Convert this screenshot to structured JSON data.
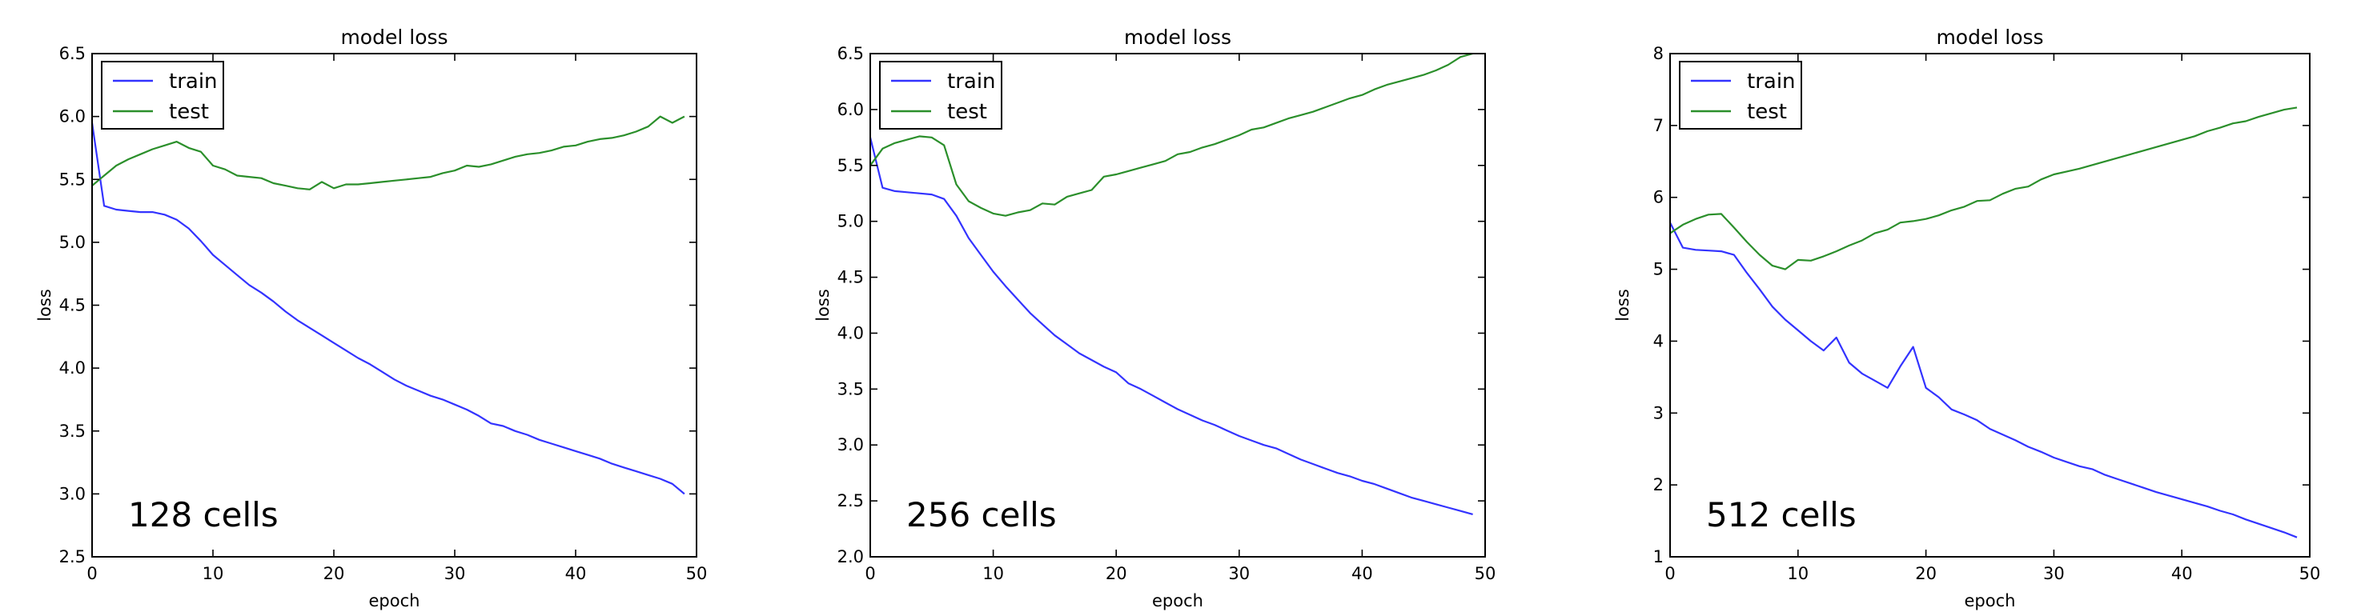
{
  "chart_data": [
    {
      "type": "line",
      "title": "model loss",
      "xlabel": "epoch",
      "ylabel": "loss",
      "xlim": [
        0,
        50
      ],
      "ylim": [
        2.5,
        6.5
      ],
      "xticks": [
        0,
        10,
        20,
        30,
        40,
        50
      ],
      "yticks": [
        2.5,
        3.0,
        3.5,
        4.0,
        4.5,
        5.0,
        5.5,
        6.0,
        6.5
      ],
      "ytick_labels": [
        "2.5",
        "3.0",
        "3.5",
        "4.0",
        "4.5",
        "5.0",
        "5.5",
        "6.0",
        "6.5"
      ],
      "annotation": "128 cells",
      "legend_location": "top-left",
      "grid": false,
      "x": [
        0,
        1,
        2,
        3,
        4,
        5,
        6,
        7,
        8,
        9,
        10,
        11,
        12,
        13,
        14,
        15,
        16,
        17,
        18,
        19,
        20,
        21,
        22,
        23,
        24,
        25,
        26,
        27,
        28,
        29,
        30,
        31,
        32,
        33,
        34,
        35,
        36,
        37,
        38,
        39,
        40,
        41,
        42,
        43,
        44,
        45,
        46,
        47,
        48,
        49
      ],
      "series": [
        {
          "name": "train",
          "color": "#3333ff",
          "values": [
            5.95,
            5.29,
            5.26,
            5.25,
            5.24,
            5.24,
            5.22,
            5.18,
            5.11,
            5.01,
            4.9,
            4.82,
            4.74,
            4.66,
            4.6,
            4.53,
            4.45,
            4.38,
            4.32,
            4.26,
            4.2,
            4.14,
            4.08,
            4.03,
            3.97,
            3.91,
            3.86,
            3.82,
            3.78,
            3.75,
            3.71,
            3.67,
            3.62,
            3.56,
            3.54,
            3.5,
            3.47,
            3.43,
            3.4,
            3.37,
            3.34,
            3.31,
            3.28,
            3.24,
            3.21,
            3.18,
            3.15,
            3.12,
            3.08,
            3.0
          ]
        },
        {
          "name": "test",
          "color": "#2b8f2b",
          "values": [
            5.45,
            5.53,
            5.61,
            5.66,
            5.7,
            5.74,
            5.77,
            5.8,
            5.75,
            5.72,
            5.61,
            5.58,
            5.53,
            5.52,
            5.51,
            5.47,
            5.45,
            5.43,
            5.42,
            5.48,
            5.43,
            5.46,
            5.46,
            5.47,
            5.48,
            5.49,
            5.5,
            5.51,
            5.52,
            5.55,
            5.57,
            5.61,
            5.6,
            5.62,
            5.65,
            5.68,
            5.7,
            5.71,
            5.73,
            5.76,
            5.77,
            5.8,
            5.82,
            5.83,
            5.85,
            5.88,
            5.92,
            6.0,
            5.95,
            6.0
          ]
        }
      ]
    },
    {
      "type": "line",
      "title": "model loss",
      "xlabel": "epoch",
      "ylabel": "loss",
      "xlim": [
        0,
        50
      ],
      "ylim": [
        2.0,
        6.5
      ],
      "xticks": [
        0,
        10,
        20,
        30,
        40,
        50
      ],
      "yticks": [
        2.0,
        2.5,
        3.0,
        3.5,
        4.0,
        4.5,
        5.0,
        5.5,
        6.0,
        6.5
      ],
      "ytick_labels": [
        "2.0",
        "2.5",
        "3.0",
        "3.5",
        "4.0",
        "4.5",
        "5.0",
        "5.5",
        "6.0",
        "6.5"
      ],
      "annotation": "256 cells",
      "legend_location": "top-left",
      "grid": false,
      "x": [
        0,
        1,
        2,
        3,
        4,
        5,
        6,
        7,
        8,
        9,
        10,
        11,
        12,
        13,
        14,
        15,
        16,
        17,
        18,
        19,
        20,
        21,
        22,
        23,
        24,
        25,
        26,
        27,
        28,
        29,
        30,
        31,
        32,
        33,
        34,
        35,
        36,
        37,
        38,
        39,
        40,
        41,
        42,
        43,
        44,
        45,
        46,
        47,
        48,
        49
      ],
      "series": [
        {
          "name": "train",
          "color": "#3333ff",
          "values": [
            5.75,
            5.3,
            5.27,
            5.26,
            5.25,
            5.24,
            5.2,
            5.05,
            4.85,
            4.7,
            4.55,
            4.42,
            4.3,
            4.18,
            4.08,
            3.98,
            3.9,
            3.82,
            3.76,
            3.7,
            3.65,
            3.55,
            3.5,
            3.44,
            3.38,
            3.32,
            3.27,
            3.22,
            3.18,
            3.13,
            3.08,
            3.04,
            3.0,
            2.97,
            2.92,
            2.87,
            2.83,
            2.79,
            2.75,
            2.72,
            2.68,
            2.65,
            2.61,
            2.57,
            2.53,
            2.5,
            2.47,
            2.44,
            2.41,
            2.38
          ]
        },
        {
          "name": "test",
          "color": "#2b8f2b",
          "values": [
            5.5,
            5.65,
            5.7,
            5.73,
            5.76,
            5.75,
            5.68,
            5.33,
            5.18,
            5.12,
            5.07,
            5.05,
            5.08,
            5.1,
            5.16,
            5.15,
            5.22,
            5.25,
            5.28,
            5.4,
            5.42,
            5.45,
            5.48,
            5.51,
            5.54,
            5.6,
            5.62,
            5.66,
            5.69,
            5.73,
            5.77,
            5.82,
            5.84,
            5.88,
            5.92,
            5.95,
            5.98,
            6.02,
            6.06,
            6.1,
            6.13,
            6.18,
            6.22,
            6.25,
            6.28,
            6.31,
            6.35,
            6.4,
            6.47,
            6.5
          ]
        }
      ]
    },
    {
      "type": "line",
      "title": "model loss",
      "xlabel": "epoch",
      "ylabel": "loss",
      "xlim": [
        0,
        50
      ],
      "ylim": [
        1,
        8
      ],
      "xticks": [
        0,
        10,
        20,
        30,
        40,
        50
      ],
      "yticks": [
        1,
        2,
        3,
        4,
        5,
        6,
        7,
        8
      ],
      "ytick_labels": [
        "1",
        "2",
        "3",
        "4",
        "5",
        "6",
        "7",
        "8"
      ],
      "annotation": "512 cells",
      "legend_location": "top-left",
      "grid": false,
      "x": [
        0,
        1,
        2,
        3,
        4,
        5,
        6,
        7,
        8,
        9,
        10,
        11,
        12,
        13,
        14,
        15,
        16,
        17,
        18,
        19,
        20,
        21,
        22,
        23,
        24,
        25,
        26,
        27,
        28,
        29,
        30,
        31,
        32,
        33,
        34,
        35,
        36,
        37,
        38,
        39,
        40,
        41,
        42,
        43,
        44,
        45,
        46,
        47,
        48,
        49
      ],
      "series": [
        {
          "name": "train",
          "color": "#3333ff",
          "values": [
            5.65,
            5.3,
            5.27,
            5.26,
            5.25,
            5.2,
            4.95,
            4.72,
            4.48,
            4.3,
            4.15,
            4.0,
            3.87,
            4.05,
            3.7,
            3.55,
            3.45,
            3.35,
            3.65,
            3.92,
            3.35,
            3.22,
            3.05,
            2.98,
            2.9,
            2.78,
            2.7,
            2.62,
            2.53,
            2.46,
            2.38,
            2.32,
            2.26,
            2.22,
            2.14,
            2.08,
            2.02,
            1.96,
            1.9,
            1.85,
            1.8,
            1.75,
            1.7,
            1.64,
            1.59,
            1.52,
            1.46,
            1.4,
            1.34,
            1.27
          ]
        },
        {
          "name": "test",
          "color": "#2b8f2b",
          "values": [
            5.5,
            5.62,
            5.7,
            5.76,
            5.77,
            5.58,
            5.38,
            5.2,
            5.05,
            5.0,
            5.13,
            5.12,
            5.18,
            5.25,
            5.33,
            5.4,
            5.5,
            5.55,
            5.65,
            5.67,
            5.7,
            5.75,
            5.82,
            5.87,
            5.95,
            5.96,
            6.05,
            6.12,
            6.15,
            6.25,
            6.32,
            6.36,
            6.4,
            6.45,
            6.5,
            6.55,
            6.6,
            6.65,
            6.7,
            6.75,
            6.8,
            6.85,
            6.92,
            6.97,
            7.03,
            7.06,
            7.12,
            7.17,
            7.22,
            7.25
          ]
        }
      ]
    }
  ]
}
